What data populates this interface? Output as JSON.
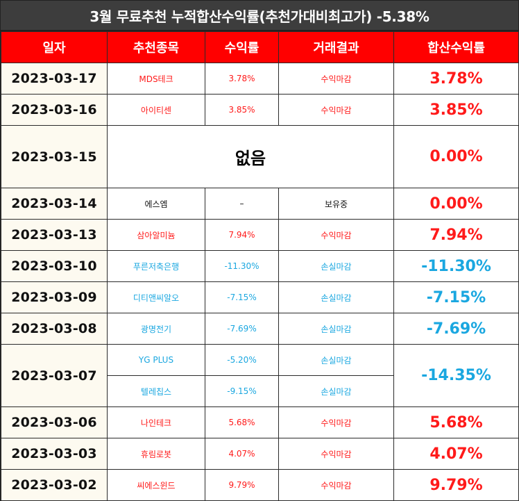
{
  "title": "3월 무료추천 누적합산수익률(추천가대비최고가) -5.38%",
  "headers": {
    "date": "일자",
    "stock": "추천종목",
    "return": "수익률",
    "result": "거래결과",
    "total": "합산수익률"
  },
  "colors": {
    "header_bg": "#ff0000",
    "title_bg": "#3d3d3d",
    "profit": "#ff1a1a",
    "loss": "#1aa7e0",
    "date_bg": "#fdfaf0"
  },
  "rows": [
    {
      "date": "2023-03-17",
      "stock": "MDS테크",
      "return": "3.78%",
      "result": "수익마감",
      "total": "3.78%"
    },
    {
      "date": "2023-03-16",
      "stock": "아이티센",
      "return": "3.85%",
      "result": "수익마감",
      "total": "3.85%"
    },
    {
      "date": "2023-03-15",
      "none": "없음",
      "total": "0.00%"
    },
    {
      "date": "2023-03-14",
      "stock": "에스엠",
      "return": "–",
      "result": "보유중",
      "total": "0.00%"
    },
    {
      "date": "2023-03-13",
      "stock": "삼아알미늄",
      "return": "7.94%",
      "result": "수익마감",
      "total": "7.94%"
    },
    {
      "date": "2023-03-10",
      "stock": "푸른저축은행",
      "return": "-11.30%",
      "result": "손실마감",
      "total": "-11.30%"
    },
    {
      "date": "2023-03-09",
      "stock": "디티앤씨알오",
      "return": "-7.15%",
      "result": "손실마감",
      "total": "-7.15%"
    },
    {
      "date": "2023-03-08",
      "stock": "광명전기",
      "return": "-7.69%",
      "result": "손실마감",
      "total": "-7.69%"
    },
    {
      "date": "2023-03-07",
      "stock": "YG PLUS",
      "return": "-5.20%",
      "result": "손실마감",
      "total": "-14.35%",
      "stock2": "텔레칩스",
      "return2": "-9.15%",
      "result2": "손실마감"
    },
    {
      "date": "2023-03-06",
      "stock": "나인테크",
      "return": "5.68%",
      "result": "수익마감",
      "total": "5.68%"
    },
    {
      "date": "2023-03-03",
      "stock": "휴림로봇",
      "return": "4.07%",
      "result": "수익마감",
      "total": "4.07%"
    },
    {
      "date": "2023-03-02",
      "stock": "씨에스윈드",
      "return": "9.79%",
      "result": "수익마감",
      "total": "9.79%"
    }
  ]
}
